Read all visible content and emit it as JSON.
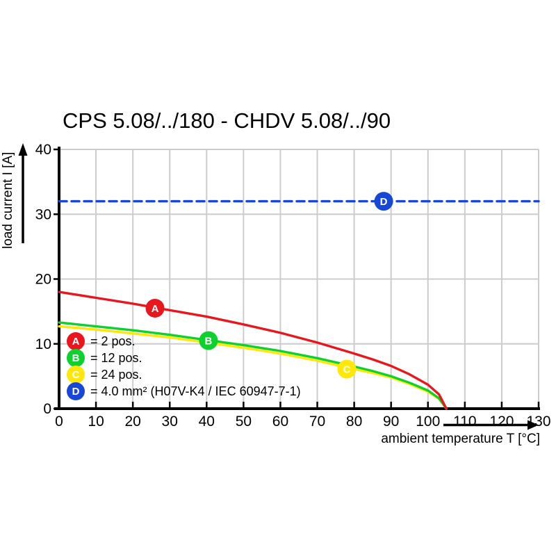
{
  "title": "CPS 5.08/../180 - CHDV 5.08/../90",
  "colors": {
    "background": "#ffffff",
    "axis": "#000000",
    "grid": "#cccccc",
    "tick_text": "#000000"
  },
  "chart_data": {
    "type": "line",
    "title": "CPS 5.08/../180 - CHDV 5.08/../90",
    "xlabel": "ambient temperature T [°C]",
    "ylabel": "load current I [A]",
    "xlim": [
      0,
      130
    ],
    "ylim": [
      0,
      40
    ],
    "xticks": [
      0,
      10,
      20,
      30,
      40,
      50,
      60,
      70,
      80,
      90,
      100,
      110,
      120,
      130
    ],
    "yticks": [
      0,
      10,
      20,
      30,
      40
    ],
    "grid": true,
    "legend_position": "inside-lower-left",
    "series": [
      {
        "id": "A",
        "legend_label": "= 2 pos.",
        "color": "#e8161d",
        "line_style": "solid",
        "marker": {
          "letter": "A",
          "x": 26,
          "y": 15.5
        },
        "points": [
          [
            0,
            18.0
          ],
          [
            10,
            17.1
          ],
          [
            20,
            16.2
          ],
          [
            30,
            15.2
          ],
          [
            40,
            14.2
          ],
          [
            50,
            13.0
          ],
          [
            60,
            11.7
          ],
          [
            70,
            10.2
          ],
          [
            80,
            8.5
          ],
          [
            85,
            7.6
          ],
          [
            90,
            6.6
          ],
          [
            95,
            5.3
          ],
          [
            100,
            3.7
          ],
          [
            103,
            2.2
          ],
          [
            105,
            0
          ]
        ]
      },
      {
        "id": "B",
        "legend_label": "= 12 pos.",
        "color": "#0ed02f",
        "line_style": "solid",
        "marker": {
          "letter": "B",
          "x": 40.5,
          "y": 10.5
        },
        "points": [
          [
            0,
            13.3
          ],
          [
            10,
            12.7
          ],
          [
            20,
            12.1
          ],
          [
            30,
            11.4
          ],
          [
            40,
            10.6
          ],
          [
            50,
            9.8
          ],
          [
            60,
            8.9
          ],
          [
            70,
            7.8
          ],
          [
            80,
            6.5
          ],
          [
            85,
            5.8
          ],
          [
            90,
            5.0
          ],
          [
            95,
            4.0
          ],
          [
            100,
            2.8
          ],
          [
            103,
            1.6
          ],
          [
            105,
            0
          ]
        ]
      },
      {
        "id": "C",
        "legend_label": "= 24 pos.",
        "color": "#ffe70a",
        "line_style": "solid",
        "marker": {
          "letter": "C",
          "x": 78,
          "y": 6.1
        },
        "points": [
          [
            0,
            12.7
          ],
          [
            10,
            12.2
          ],
          [
            20,
            11.6
          ],
          [
            30,
            11.0
          ],
          [
            40,
            10.2
          ],
          [
            50,
            9.4
          ],
          [
            60,
            8.5
          ],
          [
            70,
            7.4
          ],
          [
            80,
            6.1
          ],
          [
            85,
            5.5
          ],
          [
            90,
            4.8
          ],
          [
            95,
            3.8
          ],
          [
            100,
            2.6
          ],
          [
            103,
            1.5
          ],
          [
            105,
            0
          ]
        ]
      },
      {
        "id": "D",
        "legend_label": "= 4.0 mm² (H07V-K4 / IEC 60947-7-1)",
        "color": "#1847d6",
        "line_style": "dashed",
        "marker": {
          "letter": "D",
          "x": 88,
          "y": 32
        },
        "points": [
          [
            0,
            32
          ],
          [
            130,
            32
          ]
        ]
      }
    ]
  }
}
